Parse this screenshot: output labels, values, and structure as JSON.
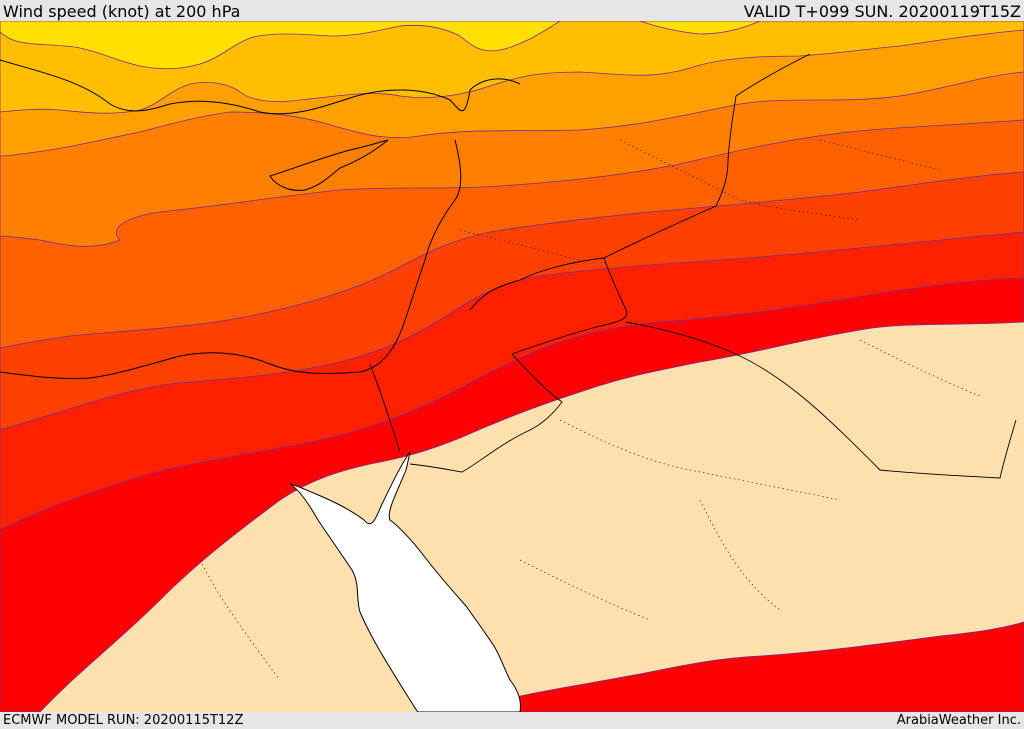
{
  "header": {
    "title": "Wind speed (knot) at 200 hPa",
    "valid": "VALID T+099 SUN. 20200119T15Z"
  },
  "footer": {
    "model_run": "ECMWF MODEL RUN: 20200115T12Z",
    "credit": "ArabiaWeather Inc."
  },
  "colors": {
    "band_lightest": "#ffe000",
    "band_2": "#ffbf00",
    "band_3": "#ff9f00",
    "band_4": "#ff7f00",
    "band_5": "#ff6000",
    "band_6": "#ff4000",
    "band_7": "#ff2000",
    "band_strongest": "#ff0000",
    "below_threshold": "#fde0ae",
    "sea_white": "#ffffff"
  }
}
